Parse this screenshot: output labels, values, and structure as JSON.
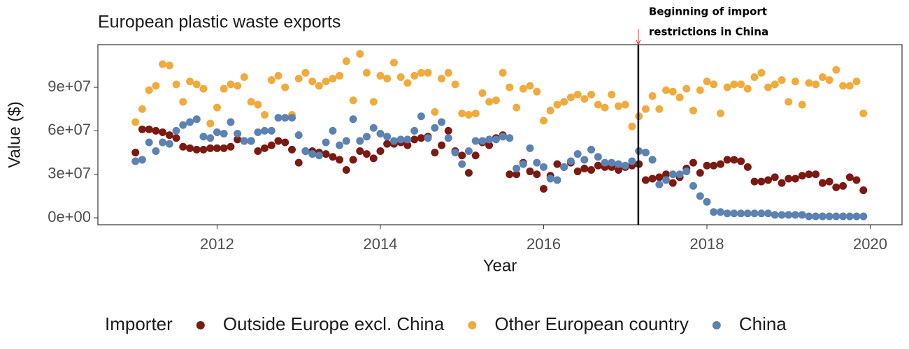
{
  "chart_data": {
    "type": "scatter",
    "title": "European plastic waste exports",
    "x_label": "Year",
    "y_label": "Value ($)",
    "legend_title": "Importer",
    "legend_position": "bottom",
    "xlim": [
      2010.54,
      2020.39
    ],
    "ylim": [
      -4800000.0,
      119400000.0
    ],
    "xticks": [
      2012,
      2014,
      2016,
      2018,
      2020
    ],
    "yticks": [
      {
        "value": 0,
        "label": "0e+00"
      },
      {
        "value": 30000000.0,
        "label": "3e+07"
      },
      {
        "value": 60000000.0,
        "label": "6e+07"
      },
      {
        "value": 90000000.0,
        "label": "9e+07"
      }
    ],
    "vline": {
      "x": 2017.16,
      "label_lines": [
        "Beginning of import",
        "restrictions in China"
      ],
      "color": "#e03030"
    },
    "x": [
      2011,
      2011.083,
      2011.167,
      2011.25,
      2011.333,
      2011.417,
      2011.5,
      2011.583,
      2011.667,
      2011.75,
      2011.833,
      2011.917,
      2012,
      2012.083,
      2012.167,
      2012.25,
      2012.333,
      2012.417,
      2012.5,
      2012.583,
      2012.667,
      2012.75,
      2012.833,
      2012.917,
      2013,
      2013.083,
      2013.167,
      2013.25,
      2013.333,
      2013.417,
      2013.5,
      2013.583,
      2013.667,
      2013.75,
      2013.833,
      2013.917,
      2014,
      2014.083,
      2014.167,
      2014.25,
      2014.333,
      2014.417,
      2014.5,
      2014.583,
      2014.667,
      2014.75,
      2014.833,
      2014.917,
      2015,
      2015.083,
      2015.167,
      2015.25,
      2015.333,
      2015.417,
      2015.5,
      2015.583,
      2015.667,
      2015.75,
      2015.833,
      2015.917,
      2016,
      2016.083,
      2016.167,
      2016.25,
      2016.333,
      2016.417,
      2016.5,
      2016.583,
      2016.667,
      2016.75,
      2016.833,
      2016.917,
      2017,
      2017.083,
      2017.167,
      2017.25,
      2017.333,
      2017.417,
      2017.5,
      2017.583,
      2017.667,
      2017.75,
      2017.833,
      2017.917,
      2018,
      2018.083,
      2018.167,
      2018.25,
      2018.333,
      2018.417,
      2018.5,
      2018.583,
      2018.667,
      2018.75,
      2018.833,
      2018.917,
      2019,
      2019.083,
      2019.167,
      2019.25,
      2019.333,
      2019.417,
      2019.5,
      2019.583,
      2019.667,
      2019.75,
      2019.833,
      2019.917
    ],
    "series": [
      {
        "name": "Outside Europe excl. China",
        "color": "#7b1a12",
        "values": [
          45000000.0,
          61000000.0,
          61000000.0,
          60000000.0,
          59000000.0,
          57000000.0,
          55000000.0,
          49000000.0,
          48000000.0,
          47000000.0,
          47000000.0,
          48000000.0,
          48000000.0,
          48000000.0,
          49000000.0,
          54000000.0,
          53000000.0,
          53000000.0,
          46000000.0,
          48000000.0,
          50000000.0,
          53000000.0,
          52000000.0,
          47000000.0,
          38000000.0,
          46000000.0,
          46000000.0,
          45000000.0,
          44000000.0,
          42000000.0,
          40000000.0,
          33000000.0,
          40000000.0,
          46000000.0,
          44000000.0,
          41000000.0,
          46000000.0,
          51000000.0,
          51000000.0,
          52000000.0,
          50000000.0,
          54000000.0,
          55000000.0,
          56000000.0,
          45000000.0,
          50000000.0,
          60000000.0,
          46000000.0,
          43000000.0,
          31000000.0,
          43000000.0,
          52000000.0,
          50000000.0,
          55000000.0,
          57000000.0,
          30000000.0,
          30000000.0,
          38000000.0,
          32000000.0,
          30000000.0,
          20000000.0,
          29000000.0,
          37000000.0,
          35000000.0,
          38000000.0,
          32000000.0,
          34000000.0,
          33000000.0,
          36000000.0,
          35000000.0,
          35000000.0,
          33000000.0,
          35000000.0,
          36000000.0,
          37000000.0,
          26000000.0,
          27000000.0,
          28000000.0,
          30000000.0,
          24000000.0,
          28000000.0,
          34000000.0,
          38000000.0,
          31000000.0,
          36000000.0,
          36000000.0,
          37000000.0,
          40000000.0,
          40000000.0,
          39000000.0,
          35000000.0,
          25000000.0,
          25000000.0,
          26000000.0,
          28000000.0,
          24000000.0,
          27000000.0,
          27000000.0,
          29000000.0,
          30000000.0,
          30000000.0,
          24000000.0,
          25000000.0,
          21000000.0,
          22000000.0,
          28000000.0,
          26000000.0,
          19000000.0
        ]
      },
      {
        "name": "Other European country",
        "color": "#f0ab3c",
        "values": [
          66000000.0,
          75000000.0,
          88000000.0,
          91000000.0,
          106000000.0,
          105000000.0,
          92000000.0,
          80000000.0,
          94000000.0,
          92000000.0,
          89000000.0,
          65000000.0,
          76000000.0,
          89000000.0,
          92000000.0,
          91000000.0,
          97000000.0,
          80000000.0,
          78000000.0,
          71000000.0,
          95000000.0,
          98000000.0,
          90000000.0,
          71000000.0,
          96000000.0,
          100000000.0,
          94000000.0,
          91000000.0,
          94000000.0,
          96000000.0,
          98000000.0,
          108000000.0,
          81000000.0,
          113000000.0,
          100000000.0,
          80000000.0,
          98000000.0,
          96000000.0,
          107000000.0,
          97000000.0,
          93000000.0,
          98000000.0,
          100000000.0,
          100000000.0,
          73000000.0,
          96000000.0,
          100000000.0,
          92000000.0,
          72000000.0,
          71000000.0,
          72000000.0,
          86000000.0,
          80000000.0,
          81000000.0,
          100000000.0,
          90000000.0,
          76000000.0,
          89000000.0,
          91000000.0,
          87000000.0,
          67000000.0,
          74000000.0,
          78000000.0,
          80000000.0,
          83000000.0,
          85000000.0,
          82000000.0,
          85000000.0,
          78000000.0,
          76000000.0,
          85000000.0,
          77000000.0,
          78000000.0,
          63000000.0,
          70000000.0,
          75000000.0,
          84000000.0,
          75000000.0,
          88000000.0,
          87000000.0,
          83000000.0,
          89000000.0,
          74000000.0,
          88000000.0,
          94000000.0,
          92000000.0,
          72000000.0,
          90000000.0,
          92000000.0,
          92000000.0,
          89000000.0,
          97000000.0,
          100000000.0,
          90000000.0,
          92000000.0,
          95000000.0,
          80000000.0,
          94000000.0,
          78000000.0,
          93000000.0,
          92000000.0,
          97000000.0,
          95000000.0,
          102000000.0,
          91000000.0,
          91000000.0,
          94000000.0,
          72000000.0
        ]
      },
      {
        "name": "China",
        "color": "#5b82b0",
        "values": [
          39000000.0,
          40000000.0,
          52000000.0,
          46000000.0,
          52000000.0,
          51000000.0,
          60000000.0,
          64000000.0,
          66000000.0,
          68000000.0,
          56000000.0,
          55000000.0,
          59000000.0,
          58000000.0,
          66000000.0,
          58000000.0,
          53000000.0,
          53000000.0,
          59000000.0,
          60000000.0,
          60000000.0,
          69000000.0,
          69000000.0,
          69000000.0,
          57000000.0,
          46000000.0,
          44000000.0,
          43000000.0,
          52000000.0,
          60000000.0,
          50000000.0,
          53000000.0,
          68000000.0,
          53000000.0,
          56000000.0,
          62000000.0,
          58000000.0,
          56000000.0,
          53000000.0,
          54000000.0,
          54000000.0,
          60000000.0,
          70000000.0,
          55000000.0,
          62000000.0,
          66000000.0,
          55000000.0,
          45000000.0,
          37000000.0,
          46000000.0,
          53000000.0,
          53000000.0,
          54000000.0,
          54000000.0,
          56000000.0,
          55000000.0,
          34000000.0,
          37000000.0,
          48000000.0,
          38000000.0,
          35000000.0,
          27000000.0,
          26000000.0,
          35000000.0,
          39000000.0,
          44000000.0,
          40000000.0,
          47000000.0,
          42000000.0,
          38000000.0,
          38000000.0,
          37000000.0,
          36000000.0,
          39000000.0,
          46000000.0,
          45000000.0,
          40000000.0,
          23000000.0,
          26000000.0,
          30000000.0,
          30000000.0,
          32000000.0,
          22000000.0,
          15000000.0,
          11000000.0,
          4000000.0,
          4000000.0,
          3000000.0,
          3000000.0,
          3000000.0,
          3000000.0,
          3000000.0,
          3000000.0,
          3000000.0,
          2000000.0,
          2000000.0,
          2000000.0,
          2000000.0,
          2000000.0,
          1000000.0,
          1000000.0,
          1000000.0,
          1000000.0,
          1000000.0,
          1000000.0,
          1000000.0,
          1000000.0,
          1000000.0
        ]
      }
    ]
  }
}
